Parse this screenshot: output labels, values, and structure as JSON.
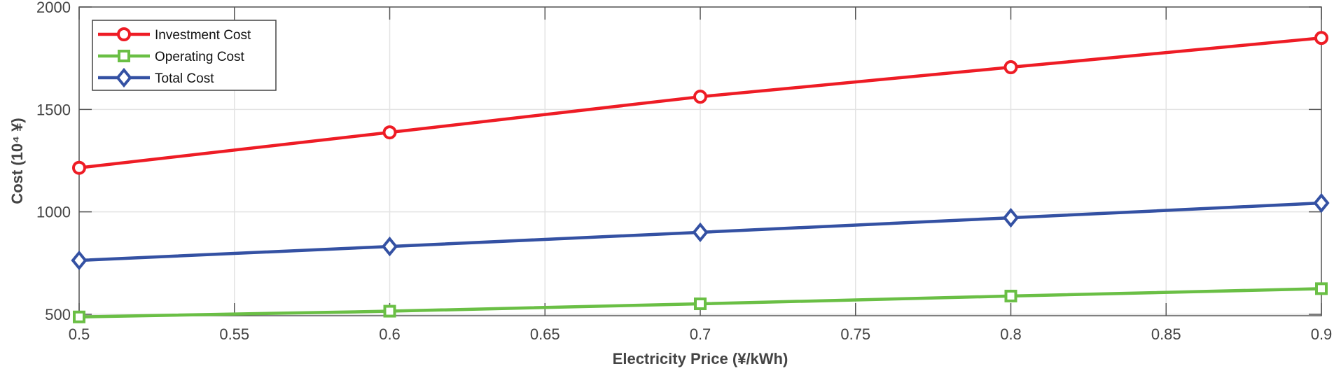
{
  "chart_data": {
    "type": "line",
    "title": "",
    "xlabel": "Electricity Price (¥/kWh)",
    "ylabel": "Cost (10⁴ ¥)",
    "xlim": [
      0.5,
      0.9
    ],
    "ylim": [
      493,
      2000
    ],
    "xticks": [
      0.5,
      0.55,
      0.6,
      0.65,
      0.7,
      0.75,
      0.8,
      0.85,
      0.9
    ],
    "xtick_labels": [
      "0.5",
      "0.55",
      "0.6",
      "0.65",
      "0.7",
      "0.75",
      "0.8",
      "0.85",
      "0.9"
    ],
    "yticks": [
      500,
      1000,
      1500,
      2000
    ],
    "ytick_labels": [
      "500",
      "1000",
      "1500",
      "2000"
    ],
    "grid": true,
    "legend_position": "top-left",
    "x": [
      0.5,
      0.6,
      0.7,
      0.8,
      0.9
    ],
    "series": [
      {
        "name": "Investment Cost",
        "color": "#ee1c25",
        "marker": "circle",
        "values": [
          1215,
          1388,
          1562,
          1706,
          1849
        ]
      },
      {
        "name": "Operating Cost",
        "color": "#6abf45",
        "marker": "square",
        "values": [
          487,
          515,
          551,
          589,
          625
        ]
      },
      {
        "name": "Total Cost",
        "color": "#3451a3",
        "marker": "diamond",
        "values": [
          763,
          831,
          900,
          971,
          1043
        ]
      }
    ]
  }
}
